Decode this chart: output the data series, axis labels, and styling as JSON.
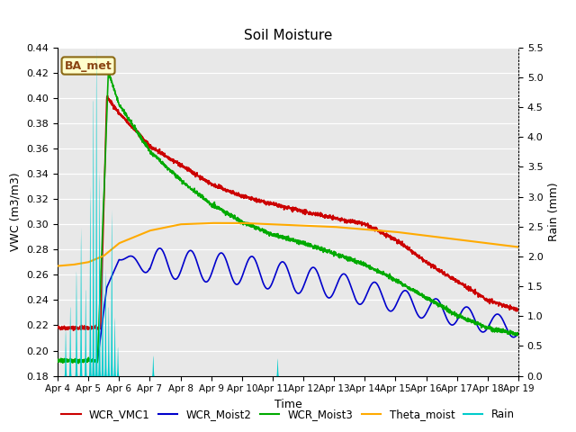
{
  "title": "Soil Moisture",
  "xlabel": "Time",
  "ylabel_left": "VWC (m3/m3)",
  "ylabel_right": "Rain (mm)",
  "ylim_left": [
    0.18,
    0.44
  ],
  "ylim_right": [
    0.0,
    5.5
  ],
  "yticks_left": [
    0.18,
    0.2,
    0.22,
    0.24,
    0.26,
    0.28,
    0.3,
    0.32,
    0.34,
    0.36,
    0.38,
    0.4,
    0.42,
    0.44
  ],
  "yticks_right": [
    0.0,
    0.5,
    1.0,
    1.5,
    2.0,
    2.5,
    3.0,
    3.5,
    4.0,
    4.5,
    5.0,
    5.5
  ],
  "xtick_labels": [
    "Apr 4",
    "Apr 5",
    "Apr 6",
    "Apr 7",
    "Apr 8",
    "Apr 9",
    "Apr 10",
    "Apr 11",
    "Apr 12",
    "Apr 13",
    "Apr 14",
    "Apr 15",
    "Apr 16",
    "Apr 17",
    "Apr 18",
    "Apr 19"
  ],
  "colors": {
    "WCR_VMC1": "#cc0000",
    "WCR_Moist2": "#0000cc",
    "WCR_Moist3": "#00aa00",
    "Theta_moist": "#ffaa00",
    "Rain": "#00cccc"
  },
  "annotation_text": "BA_met",
  "annotation_fg": "#8B4513",
  "annotation_bg": "#ffffcc",
  "annotation_edge": "#8B6914",
  "background_color": "#e8e8e8",
  "figure_background": "#ffffff"
}
